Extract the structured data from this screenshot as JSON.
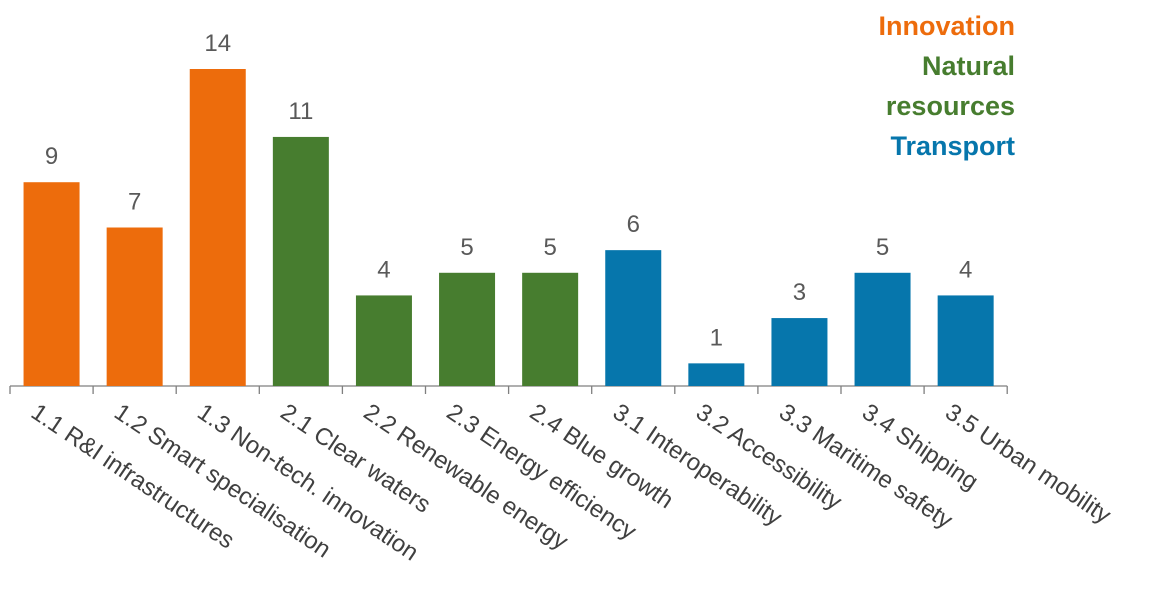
{
  "chart_data": {
    "type": "bar",
    "categories": [
      "1.1 R&I infrastructures",
      "1.2 Smart specialisation",
      "1.3 Non-tech. innovation",
      "2.1 Clear waters",
      "2.2 Renewable energy",
      "2.3 Energy efficiency",
      "2.4 Blue growth",
      "3.1 Interoperability",
      "3.2 Accessibility",
      "3.3 Maritime safety",
      "3.4 Shipping",
      "3.5 Urban mobility"
    ],
    "values": [
      9,
      7,
      14,
      11,
      4,
      5,
      5,
      6,
      1,
      3,
      5,
      4
    ],
    "groups": [
      "Innovation",
      "Innovation",
      "Innovation",
      "Natural resources",
      "Natural resources",
      "Natural resources",
      "Natural resources",
      "Transport",
      "Transport",
      "Transport",
      "Transport",
      "Transport"
    ],
    "colors": {
      "Innovation": "#ED6C0C",
      "Natural resources": "#477D2F",
      "Transport": "#0676AC"
    },
    "ylim": [
      0,
      14
    ],
    "grid": false,
    "legend_position": "top-right",
    "legend": [
      {
        "lines": [
          "Innovation"
        ],
        "color": "#ED6C0C"
      },
      {
        "lines": [
          "Natural",
          "resources"
        ],
        "color": "#477D2F"
      },
      {
        "lines": [
          "Transport"
        ],
        "color": "#0676AC"
      }
    ]
  }
}
